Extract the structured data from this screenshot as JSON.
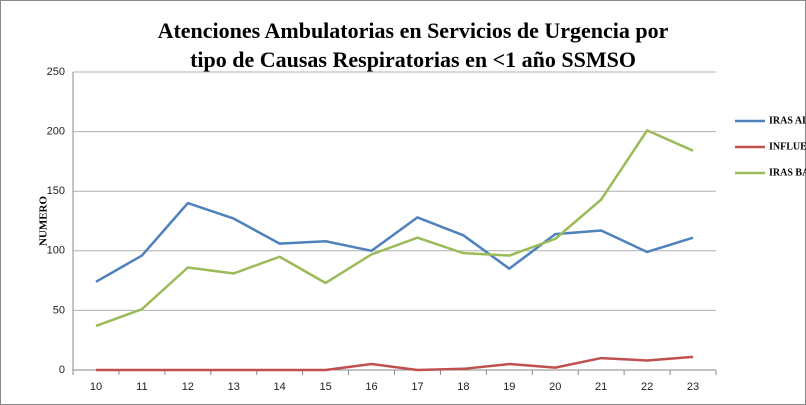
{
  "chart_data": {
    "type": "line",
    "title": [
      "Atenciones Ambulatorias en Servicios de Urgencia por",
      "tipo de Causas Respiratorias en <1 año   SSMSO"
    ],
    "ylabel": "NUMERO",
    "categories": [
      "10",
      "11",
      "12",
      "13",
      "14",
      "15",
      "16",
      "17",
      "18",
      "19",
      "20",
      "21",
      "22",
      "23"
    ],
    "series": [
      {
        "name": "IRAS ALTAS",
        "color": "#4f81bd",
        "values": [
          74,
          96,
          140,
          127,
          106,
          108,
          100,
          128,
          113,
          85,
          114,
          117,
          99,
          111
        ]
      },
      {
        "name": "INFLUENZA",
        "color": "#c0504d",
        "values": [
          0,
          0,
          0,
          0,
          0,
          0,
          5,
          0,
          1,
          5,
          2,
          10,
          8,
          11
        ]
      },
      {
        "name": "IRAS BAJAS",
        "color": "#9bbb59",
        "values": [
          37,
          51,
          86,
          81,
          95,
          73,
          97,
          111,
          98,
          96,
          110,
          143,
          201,
          184
        ]
      }
    ],
    "ylim": [
      0,
      250
    ],
    "yticks": [
      0,
      50,
      100,
      150,
      200,
      250
    ],
    "grid": true,
    "legend": "right"
  }
}
